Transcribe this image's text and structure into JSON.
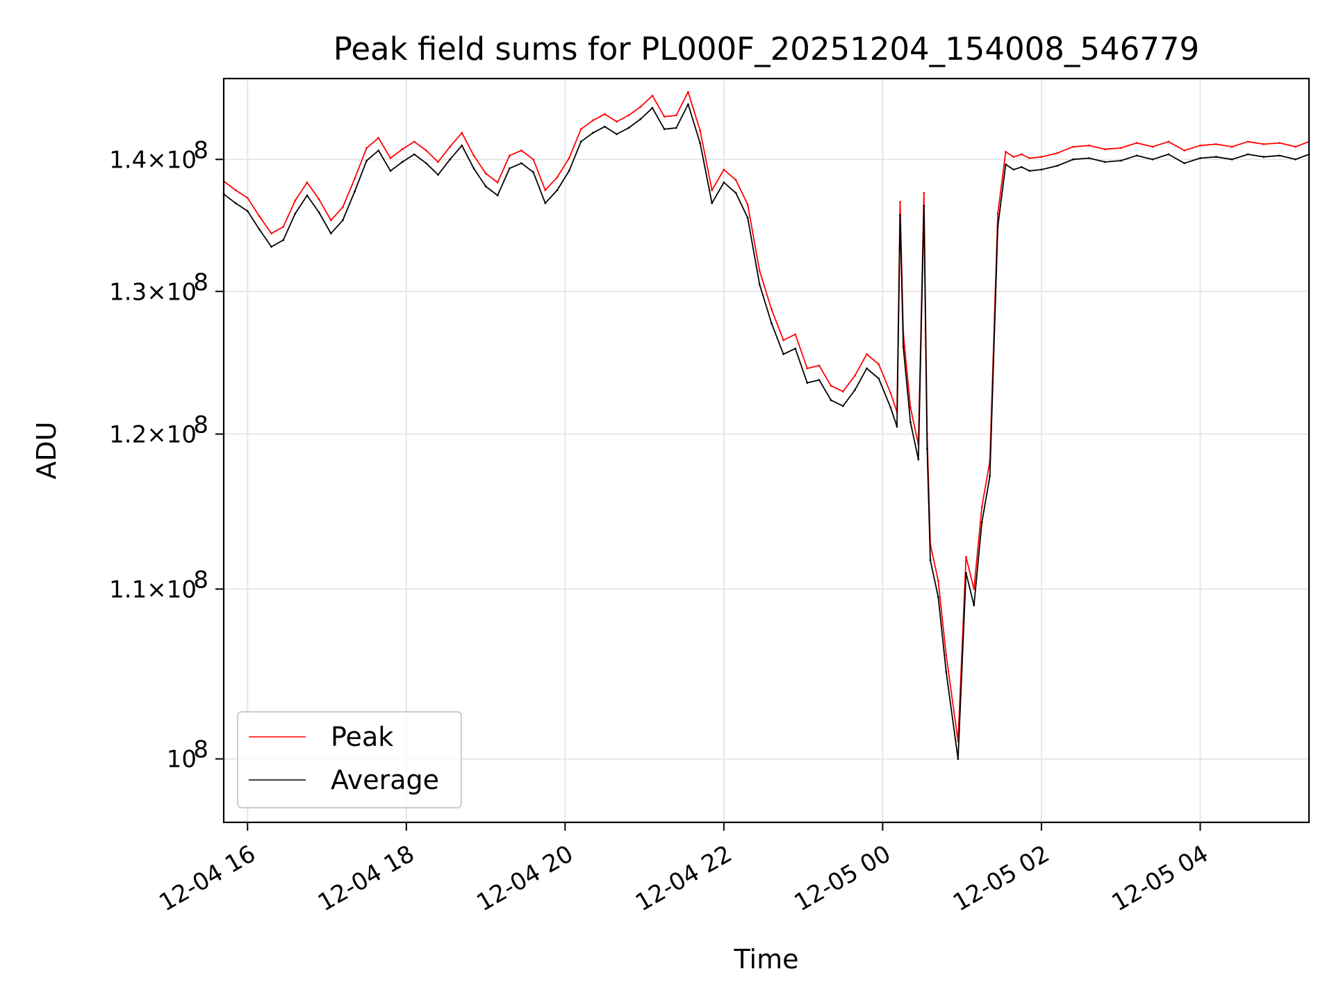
{
  "chart_data": {
    "type": "line",
    "title": "Peak field sums for PL000F_20251204_154008_546779",
    "xlabel": "Time",
    "ylabel": "ADU",
    "yscale": "log",
    "ylim": [
      96500000,
      146500000
    ],
    "xlim_hours": [
      15.7,
      29.37
    ],
    "grid": true,
    "legend_location": "lower-left",
    "x_ticks": [
      {
        "hours": 16,
        "label": "12-04 16"
      },
      {
        "hours": 18,
        "label": "12-04 18"
      },
      {
        "hours": 20,
        "label": "12-04 20"
      },
      {
        "hours": 22,
        "label": "12-04 22"
      },
      {
        "hours": 24,
        "label": "12-05 00"
      },
      {
        "hours": 26,
        "label": "12-05 02"
      },
      {
        "hours": 28,
        "label": "12-05 04"
      }
    ],
    "y_ticks": [
      {
        "value": 100000000,
        "mant": "",
        "exp": "8"
      },
      {
        "value": 110000000,
        "mant": "1.1",
        "exp": "8"
      },
      {
        "value": 120000000,
        "mant": "1.2",
        "exp": "8"
      },
      {
        "value": 130000000,
        "mant": "1.3",
        "exp": "8"
      },
      {
        "value": 140000000,
        "mant": "1.4",
        "exp": "8"
      }
    ],
    "series": [
      {
        "name": "Peak",
        "color": "#ff0000",
        "x_hours": [
          15.7,
          15.85,
          16.0,
          16.15,
          16.3,
          16.45,
          16.6,
          16.75,
          16.9,
          17.05,
          17.2,
          17.35,
          17.5,
          17.65,
          17.8,
          17.95,
          18.1,
          18.25,
          18.4,
          18.55,
          18.7,
          18.85,
          19.0,
          19.15,
          19.3,
          19.45,
          19.6,
          19.75,
          19.9,
          20.05,
          20.2,
          20.35,
          20.5,
          20.65,
          20.8,
          20.95,
          21.1,
          21.25,
          21.4,
          21.55,
          21.7,
          21.85,
          22.0,
          22.15,
          22.3,
          22.45,
          22.6,
          22.75,
          22.9,
          23.05,
          23.2,
          23.35,
          23.5,
          23.65,
          23.8,
          23.95,
          24.1,
          24.18,
          24.22,
          24.26,
          24.35,
          24.45,
          24.52,
          24.56,
          24.6,
          24.7,
          24.8,
          24.95,
          25.05,
          25.15,
          25.25,
          25.35,
          25.45,
          25.55,
          25.65,
          25.75,
          25.85,
          26.0,
          26.2,
          26.4,
          26.6,
          26.8,
          27.0,
          27.2,
          27.4,
          27.6,
          27.8,
          28.0,
          28.2,
          28.4,
          28.6,
          28.8,
          29.0,
          29.2,
          29.37
        ],
        "values": [
          138300000,
          137600000,
          137000000,
          135600000,
          134300000,
          134800000,
          136800000,
          138200000,
          136900000,
          135300000,
          136300000,
          138500000,
          140900000,
          141700000,
          140100000,
          140800000,
          141400000,
          140700000,
          139800000,
          141000000,
          142100000,
          140300000,
          138900000,
          138200000,
          140300000,
          140700000,
          140000000,
          137600000,
          138600000,
          140100000,
          142400000,
          143100000,
          143600000,
          143000000,
          143500000,
          144200000,
          145100000,
          143400000,
          143500000,
          145400000,
          142300000,
          137600000,
          139200000,
          138400000,
          136500000,
          131500000,
          128700000,
          126500000,
          126900000,
          124500000,
          124700000,
          123300000,
          122900000,
          124000000,
          125500000,
          124800000,
          122800000,
          121500000,
          136700000,
          127000000,
          121800000,
          119300000,
          137400000,
          120000000,
          112800000,
          110500000,
          106000000,
          101000000,
          112000000,
          110000000,
          115200000,
          118200000,
          135800000,
          140600000,
          140200000,
          140400000,
          140100000,
          140200000,
          140500000,
          141000000,
          141100000,
          140800000,
          140900000,
          141300000,
          141000000,
          141400000,
          140700000,
          141100000,
          141200000,
          141000000,
          141400000,
          141200000,
          141300000,
          141000000,
          141400000
        ]
      },
      {
        "name": "Average",
        "color": "#000000",
        "x_hours": [
          15.7,
          15.85,
          16.0,
          16.15,
          16.3,
          16.45,
          16.6,
          16.75,
          16.9,
          17.05,
          17.2,
          17.35,
          17.5,
          17.65,
          17.8,
          17.95,
          18.1,
          18.25,
          18.4,
          18.55,
          18.7,
          18.85,
          19.0,
          19.15,
          19.3,
          19.45,
          19.6,
          19.75,
          19.9,
          20.05,
          20.2,
          20.35,
          20.5,
          20.65,
          20.8,
          20.95,
          21.1,
          21.25,
          21.4,
          21.55,
          21.7,
          21.85,
          22.0,
          22.15,
          22.3,
          22.45,
          22.6,
          22.75,
          22.9,
          23.05,
          23.2,
          23.35,
          23.5,
          23.65,
          23.8,
          23.95,
          24.1,
          24.18,
          24.22,
          24.26,
          24.35,
          24.45,
          24.52,
          24.56,
          24.6,
          24.7,
          24.8,
          24.95,
          25.05,
          25.15,
          25.25,
          25.35,
          25.45,
          25.55,
          25.65,
          25.75,
          25.85,
          26.0,
          26.2,
          26.4,
          26.6,
          26.8,
          27.0,
          27.2,
          27.4,
          27.6,
          27.8,
          28.0,
          28.2,
          28.4,
          28.6,
          28.8,
          29.0,
          29.2,
          29.37
        ],
        "values": [
          137300000,
          136600000,
          136000000,
          134600000,
          133300000,
          133800000,
          135800000,
          137200000,
          135900000,
          134300000,
          135300000,
          137500000,
          139900000,
          140700000,
          139100000,
          139800000,
          140400000,
          139700000,
          138800000,
          140000000,
          141100000,
          139300000,
          137900000,
          137200000,
          139300000,
          139700000,
          139000000,
          136600000,
          137600000,
          139100000,
          141400000,
          142100000,
          142600000,
          142000000,
          142500000,
          143200000,
          144100000,
          142400000,
          142500000,
          144400000,
          141300000,
          136600000,
          138200000,
          137400000,
          135500000,
          130500000,
          127700000,
          125500000,
          125900000,
          123500000,
          123700000,
          122300000,
          121900000,
          123000000,
          124500000,
          123800000,
          121800000,
          120500000,
          135700000,
          126000000,
          120800000,
          118300000,
          136400000,
          119000000,
          111800000,
          109500000,
          105000000,
          100000000,
          111000000,
          109000000,
          114200000,
          117200000,
          134800000,
          139600000,
          139200000,
          139400000,
          139100000,
          139200000,
          139500000,
          140000000,
          140100000,
          139800000,
          139900000,
          140300000,
          140000000,
          140400000,
          139700000,
          140100000,
          140200000,
          140000000,
          140400000,
          140200000,
          140300000,
          140000000,
          140400000
        ]
      }
    ]
  }
}
